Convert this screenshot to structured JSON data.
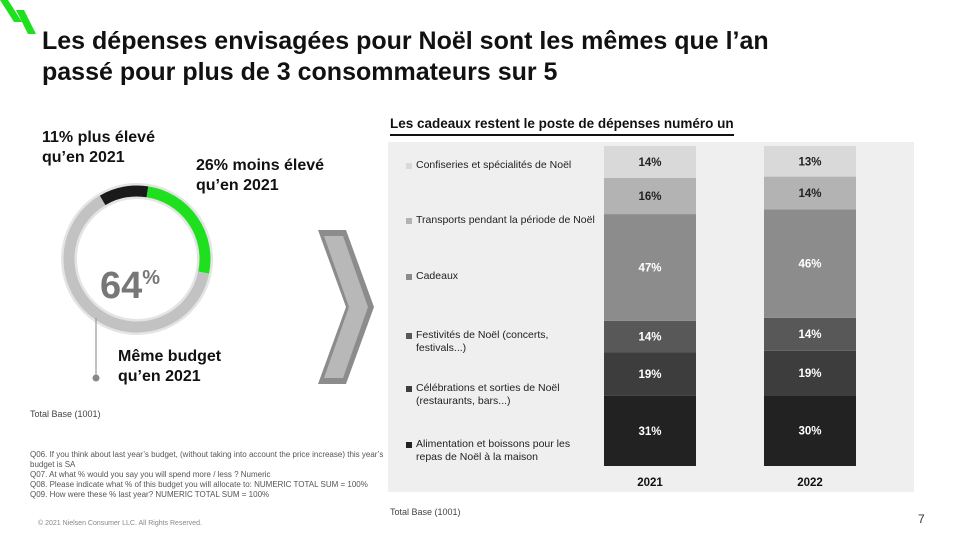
{
  "title": "Les dépenses envisagées pour Noël sont les mêmes que l’an passé pour plus de 3 consommateurs sur 5",
  "donut": {
    "label_higher": "11% plus élevé qu’en 2021",
    "label_lower": "26% moins élevé qu’en 2021",
    "label_same": "Même budget qu’en 2021",
    "center_value": "64",
    "center_unit": "%",
    "slices": [
      {
        "name": "Même budget",
        "value": 64,
        "color": "#c2c2c2"
      },
      {
        "name": "plus élevé",
        "value": 11,
        "color": "#1a1a1a"
      },
      {
        "name": "moins élevé",
        "value": 26,
        "color": "#1fe01f"
      }
    ]
  },
  "total_base_left": "Total Base (1001)",
  "notes": [
    "Q06. If you think about last year’s budget, (without taking into account the price increase) this year’s budget is SA",
    "Q07. At what % would you say you will spend more / less ? Numeric",
    "Q08. Please indicate what % of this budget you will allocate to: NUMERIC TOTAL SUM = 100%",
    "Q09. How were these % last year? NUMERIC TOTAL SUM = 100%"
  ],
  "copyright": "© 2021 Nielsen Consumer LLC. All Rights Reserved.",
  "subtitle": "Les cadeaux restent le poste de dépenses numéro un",
  "chart_data": {
    "type": "bar",
    "stacked": true,
    "categories": [
      "2021",
      "2022"
    ],
    "series": [
      {
        "name": "Alimentation et boissons pour les repas de Noël à la maison",
        "values": [
          31,
          30
        ],
        "color": "#222222",
        "label_color": "#ffffff"
      },
      {
        "name": "Célébrations et sorties de Noël (restaurants, bars...)",
        "values": [
          19,
          19
        ],
        "color": "#3d3d3d",
        "label_color": "#ffffff"
      },
      {
        "name": "Festivités de Noël (concerts, festivals...)",
        "values": [
          14,
          14
        ],
        "color": "#585858",
        "label_color": "#ffffff"
      },
      {
        "name": "Cadeaux",
        "values": [
          47,
          46
        ],
        "color": "#8c8c8c",
        "label_color": "#ffffff"
      },
      {
        "name": "Transports pendant la période de Noël",
        "values": [
          16,
          14
        ],
        "color": "#b3b3b3",
        "label_color": "#222222"
      },
      {
        "name": "Confiseries et spécialités de Noël",
        "values": [
          14,
          13
        ],
        "color": "#d9d9d9",
        "label_color": "#222222"
      }
    ],
    "value_suffix": "%",
    "legend_position": "left"
  },
  "total_base_right": "Total Base (1001)",
  "page_number": "7"
}
